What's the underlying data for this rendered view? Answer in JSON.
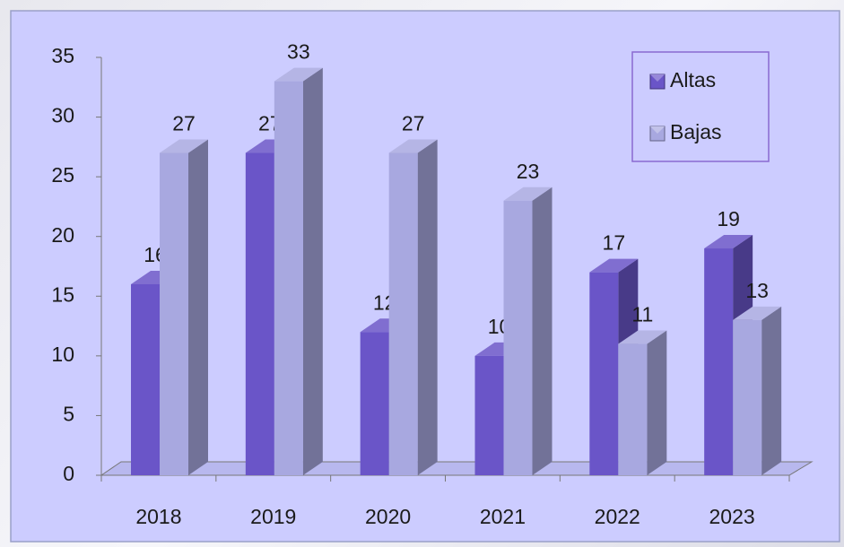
{
  "chart_data": {
    "type": "bar3d",
    "categories": [
      "2018",
      "2019",
      "2020",
      "2021",
      "2022",
      "2023"
    ],
    "series": [
      {
        "name": "Altas",
        "color": "#6a55c8",
        "values": [
          16,
          27,
          12,
          10,
          17,
          19
        ]
      },
      {
        "name": "Bajas",
        "color": "#a8a8e0",
        "values": [
          27,
          33,
          27,
          23,
          11,
          13
        ]
      }
    ],
    "ylim": [
      0,
      35
    ],
    "yticks": [
      0,
      5,
      10,
      15,
      20,
      25,
      30,
      35
    ],
    "legend": "top-right"
  }
}
